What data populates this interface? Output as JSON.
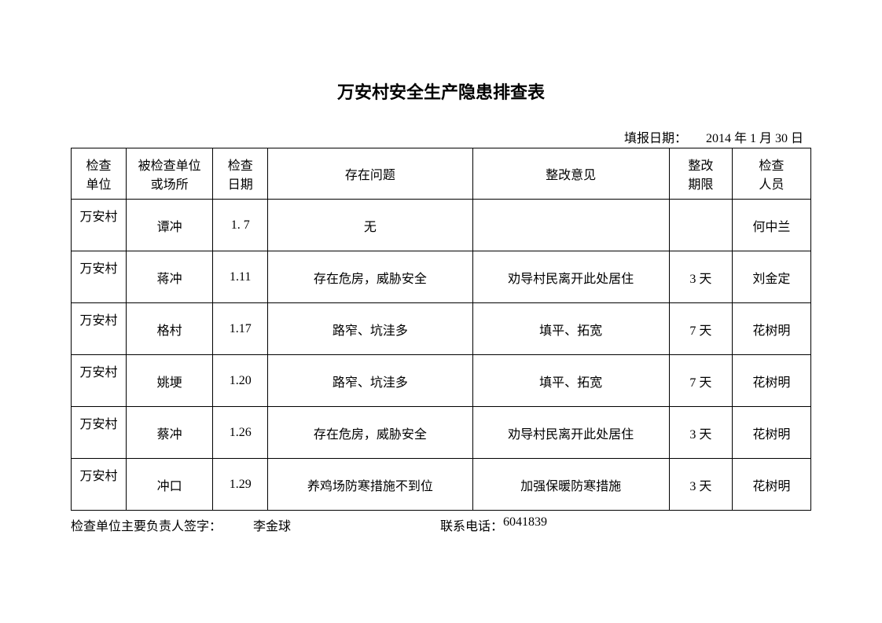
{
  "title": "万安村安全生产隐患排查表",
  "report_date": {
    "label": "填报日期：",
    "value": "2014 年 1 月 30 日"
  },
  "table": {
    "headers": {
      "unit": "检查\n单位",
      "place": "被检查单位\n或场所",
      "date": "检查\n日期",
      "problem": "存在问题",
      "opinion": "整改意见",
      "deadline": "整改\n期限",
      "inspector": "检查\n人员"
    },
    "rows": [
      {
        "unit": "万安村",
        "place": "谭冲",
        "date": "1. 7",
        "problem": "无",
        "opinion": "",
        "deadline": "",
        "inspector": "何中兰"
      },
      {
        "unit": "万安村",
        "place": "蒋冲",
        "date": "1.11",
        "problem": "存在危房，威胁安全",
        "opinion": "劝导村民离开此处居住",
        "deadline": "3 天",
        "inspector": "刘金定"
      },
      {
        "unit": "万安村",
        "place": "格村",
        "date": "1.17",
        "problem": "路窄、坑洼多",
        "opinion": "填平、拓宽",
        "deadline": "7 天",
        "inspector": "花树明"
      },
      {
        "unit": "万安村",
        "place": "姚埂",
        "date": "1.20",
        "problem": "路窄、坑洼多",
        "opinion": "填平、拓宽",
        "deadline": "7 天",
        "inspector": "花树明"
      },
      {
        "unit": "万安村",
        "place": "蔡冲",
        "date": "1.26",
        "problem": "存在危房，威胁安全",
        "opinion": "劝导村民离开此处居住",
        "deadline": "3 天",
        "inspector": "花树明"
      },
      {
        "unit": "万安村",
        "place": "冲口",
        "date": "1.29",
        "problem": "养鸡场防寒措施不到位",
        "opinion": "加强保暖防寒措施",
        "deadline": "3 天",
        "inspector": "花树明"
      }
    ]
  },
  "footer": {
    "sig_label": "检查单位主要负责人签字：",
    "sig_name": "李金球",
    "phone_label": "联系电话：",
    "phone_value": "6041839"
  }
}
